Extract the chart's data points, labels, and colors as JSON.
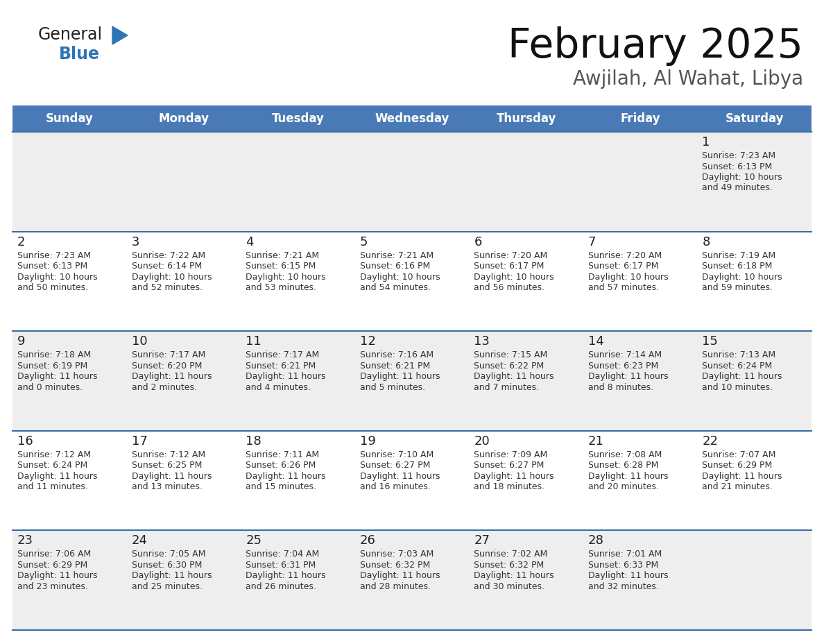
{
  "title": "February 2025",
  "subtitle": "Awjilah, Al Wahat, Libya",
  "header_color": "#4a7ab5",
  "header_text_color": "#ffffff",
  "weekdays": [
    "Sunday",
    "Monday",
    "Tuesday",
    "Wednesday",
    "Thursday",
    "Friday",
    "Saturday"
  ],
  "bg_color": "#ffffff",
  "row_colors": [
    "#eeeeee",
    "#ffffff",
    "#eeeeee",
    "#ffffff",
    "#eeeeee"
  ],
  "border_color": "#3a6ea5",
  "day_text_color": "#222222",
  "info_text_color": "#333333",
  "title_color": "#111111",
  "subtitle_color": "#555555",
  "logo_general_color": "#222222",
  "logo_blue_color": "#2e75b6",
  "calendar_data": [
    {
      "week": 0,
      "dow": 6,
      "day": 1,
      "sunrise": "7:23 AM",
      "sunset": "6:13 PM",
      "daylight": "10 hours and 49 minutes."
    },
    {
      "week": 1,
      "dow": 0,
      "day": 2,
      "sunrise": "7:23 AM",
      "sunset": "6:13 PM",
      "daylight": "10 hours and 50 minutes."
    },
    {
      "week": 1,
      "dow": 1,
      "day": 3,
      "sunrise": "7:22 AM",
      "sunset": "6:14 PM",
      "daylight": "10 hours and 52 minutes."
    },
    {
      "week": 1,
      "dow": 2,
      "day": 4,
      "sunrise": "7:21 AM",
      "sunset": "6:15 PM",
      "daylight": "10 hours and 53 minutes."
    },
    {
      "week": 1,
      "dow": 3,
      "day": 5,
      "sunrise": "7:21 AM",
      "sunset": "6:16 PM",
      "daylight": "10 hours and 54 minutes."
    },
    {
      "week": 1,
      "dow": 4,
      "day": 6,
      "sunrise": "7:20 AM",
      "sunset": "6:17 PM",
      "daylight": "10 hours and 56 minutes."
    },
    {
      "week": 1,
      "dow": 5,
      "day": 7,
      "sunrise": "7:20 AM",
      "sunset": "6:17 PM",
      "daylight": "10 hours and 57 minutes."
    },
    {
      "week": 1,
      "dow": 6,
      "day": 8,
      "sunrise": "7:19 AM",
      "sunset": "6:18 PM",
      "daylight": "10 hours and 59 minutes."
    },
    {
      "week": 2,
      "dow": 0,
      "day": 9,
      "sunrise": "7:18 AM",
      "sunset": "6:19 PM",
      "daylight": "11 hours and 0 minutes."
    },
    {
      "week": 2,
      "dow": 1,
      "day": 10,
      "sunrise": "7:17 AM",
      "sunset": "6:20 PM",
      "daylight": "11 hours and 2 minutes."
    },
    {
      "week": 2,
      "dow": 2,
      "day": 11,
      "sunrise": "7:17 AM",
      "sunset": "6:21 PM",
      "daylight": "11 hours and 4 minutes."
    },
    {
      "week": 2,
      "dow": 3,
      "day": 12,
      "sunrise": "7:16 AM",
      "sunset": "6:21 PM",
      "daylight": "11 hours and 5 minutes."
    },
    {
      "week": 2,
      "dow": 4,
      "day": 13,
      "sunrise": "7:15 AM",
      "sunset": "6:22 PM",
      "daylight": "11 hours and 7 minutes."
    },
    {
      "week": 2,
      "dow": 5,
      "day": 14,
      "sunrise": "7:14 AM",
      "sunset": "6:23 PM",
      "daylight": "11 hours and 8 minutes."
    },
    {
      "week": 2,
      "dow": 6,
      "day": 15,
      "sunrise": "7:13 AM",
      "sunset": "6:24 PM",
      "daylight": "11 hours and 10 minutes."
    },
    {
      "week": 3,
      "dow": 0,
      "day": 16,
      "sunrise": "7:12 AM",
      "sunset": "6:24 PM",
      "daylight": "11 hours and 11 minutes."
    },
    {
      "week": 3,
      "dow": 1,
      "day": 17,
      "sunrise": "7:12 AM",
      "sunset": "6:25 PM",
      "daylight": "11 hours and 13 minutes."
    },
    {
      "week": 3,
      "dow": 2,
      "day": 18,
      "sunrise": "7:11 AM",
      "sunset": "6:26 PM",
      "daylight": "11 hours and 15 minutes."
    },
    {
      "week": 3,
      "dow": 3,
      "day": 19,
      "sunrise": "7:10 AM",
      "sunset": "6:27 PM",
      "daylight": "11 hours and 16 minutes."
    },
    {
      "week": 3,
      "dow": 4,
      "day": 20,
      "sunrise": "7:09 AM",
      "sunset": "6:27 PM",
      "daylight": "11 hours and 18 minutes."
    },
    {
      "week": 3,
      "dow": 5,
      "day": 21,
      "sunrise": "7:08 AM",
      "sunset": "6:28 PM",
      "daylight": "11 hours and 20 minutes."
    },
    {
      "week": 3,
      "dow": 6,
      "day": 22,
      "sunrise": "7:07 AM",
      "sunset": "6:29 PM",
      "daylight": "11 hours and 21 minutes."
    },
    {
      "week": 4,
      "dow": 0,
      "day": 23,
      "sunrise": "7:06 AM",
      "sunset": "6:29 PM",
      "daylight": "11 hours and 23 minutes."
    },
    {
      "week": 4,
      "dow": 1,
      "day": 24,
      "sunrise": "7:05 AM",
      "sunset": "6:30 PM",
      "daylight": "11 hours and 25 minutes."
    },
    {
      "week": 4,
      "dow": 2,
      "day": 25,
      "sunrise": "7:04 AM",
      "sunset": "6:31 PM",
      "daylight": "11 hours and 26 minutes."
    },
    {
      "week": 4,
      "dow": 3,
      "day": 26,
      "sunrise": "7:03 AM",
      "sunset": "6:32 PM",
      "daylight": "11 hours and 28 minutes."
    },
    {
      "week": 4,
      "dow": 4,
      "day": 27,
      "sunrise": "7:02 AM",
      "sunset": "6:32 PM",
      "daylight": "11 hours and 30 minutes."
    },
    {
      "week": 4,
      "dow": 5,
      "day": 28,
      "sunrise": "7:01 AM",
      "sunset": "6:33 PM",
      "daylight": "11 hours and 32 minutes."
    }
  ]
}
